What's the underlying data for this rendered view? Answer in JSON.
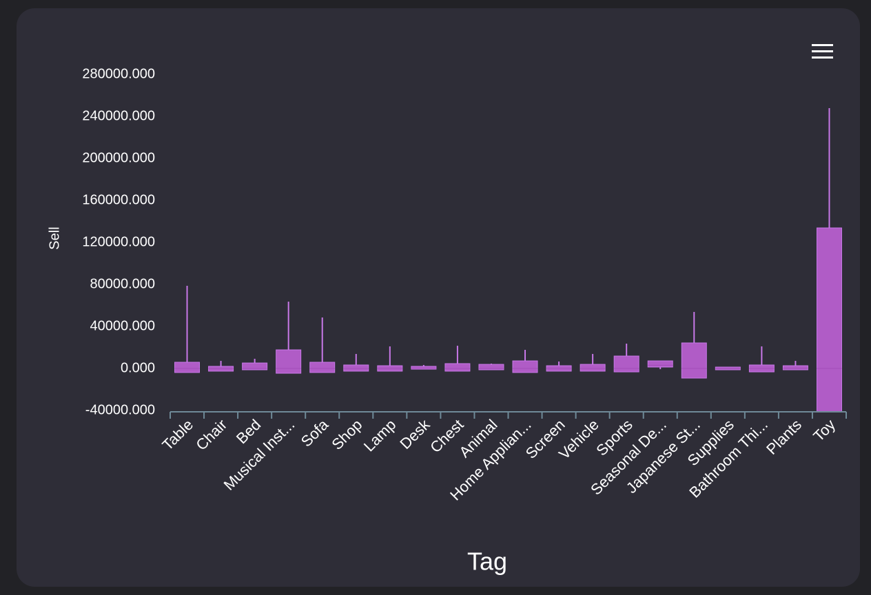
{
  "chart_data": {
    "type": "box",
    "x_label": "Tag",
    "y_label": "Sell",
    "color": "#b05cc6",
    "categories": [
      "Table",
      "Chair",
      "Bed",
      "Musical Inst...",
      "Sofa",
      "Shop",
      "Lamp",
      "Desk",
      "Chest",
      "Animal",
      "Home Applian...",
      "Screen",
      "Vehicle",
      "Sports",
      "Seasonal De...",
      "Japanese St...",
      "Supplies",
      "Bathroom Thi...",
      "Plants",
      "Toy"
    ],
    "low": [
      -3900,
      -2600,
      -1300,
      -4600,
      -3900,
      -2600,
      -2600,
      -700,
      -2600,
      -1300,
      -3900,
      -2600,
      -2600,
      -3300,
      -700,
      -9200,
      -1300,
      -3300,
      -1300,
      -41300
    ],
    "q1": [
      -3900,
      -2600,
      -1300,
      -4600,
      -3900,
      -2600,
      -2600,
      -700,
      -2600,
      -1300,
      -3900,
      -2600,
      -2600,
      -3300,
      1300,
      -9200,
      -1300,
      -3300,
      -1300,
      -41300
    ],
    "median": [
      0,
      0,
      0,
      0,
      0,
      0,
      0,
      0,
      0,
      0,
      0,
      0,
      0,
      0,
      3000,
      0,
      0,
      0,
      0,
      0
    ],
    "q3": [
      5900,
      2000,
      5200,
      17700,
      5900,
      3300,
      2600,
      2000,
      4600,
      3900,
      7200,
      2600,
      3900,
      11800,
      7200,
      24300,
      1300,
      3300,
      2600,
      133800
    ],
    "high": [
      78700,
      7200,
      9200,
      63600,
      48500,
      13800,
      21000,
      3300,
      21600,
      4600,
      17700,
      6600,
      13800,
      23600,
      7200,
      53800,
      1300,
      21000,
      7200,
      247900
    ],
    "ylim": [
      -40000,
      280000
    ],
    "yticks": [
      {
        "value": -40000,
        "label": "-40000.000"
      },
      {
        "value": 0,
        "label": "0.000"
      },
      {
        "value": 40000,
        "label": "40000.000"
      },
      {
        "value": 80000,
        "label": "80000.000"
      },
      {
        "value": 120000,
        "label": "120000.000"
      },
      {
        "value": 160000,
        "label": "160000.000"
      },
      {
        "value": 200000,
        "label": "200000.000"
      },
      {
        "value": 240000,
        "label": "240000.000"
      },
      {
        "value": 280000,
        "label": "280000.000"
      }
    ]
  }
}
